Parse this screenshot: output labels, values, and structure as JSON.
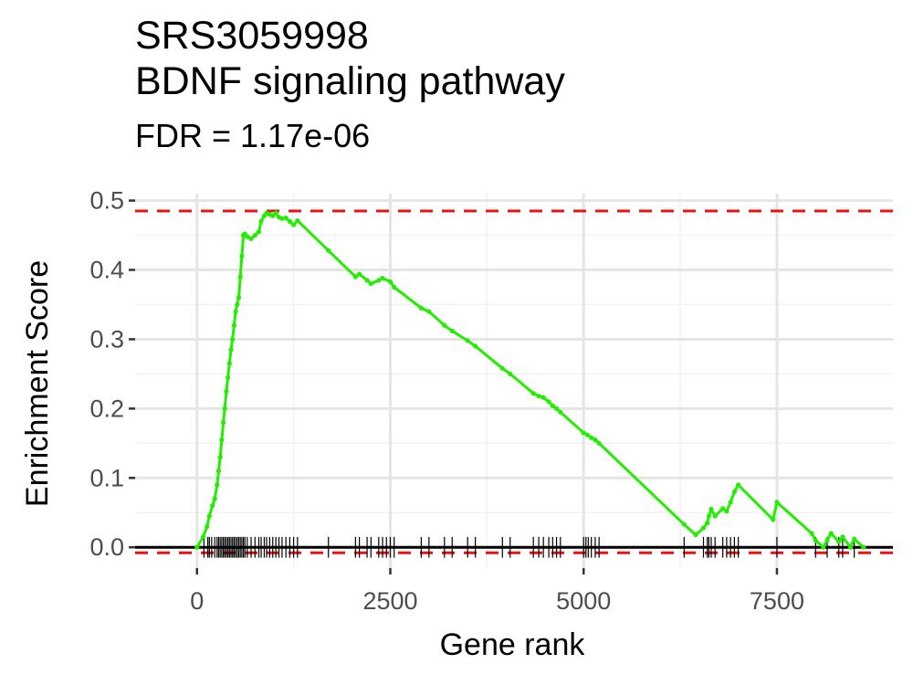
{
  "chart_data": {
    "type": "line",
    "title": "SRS3059998",
    "title_line2": "BDNF signaling pathway",
    "subtitle": "FDR = 1.17e-06",
    "xlabel": "Gene rank",
    "ylabel": "Enrichment Score",
    "xlim": [
      -800,
      9000
    ],
    "ylim": [
      -0.03,
      0.51
    ],
    "x_ticks": [
      0,
      2500,
      5000,
      7500
    ],
    "x_tick_labels": [
      "0",
      "2500",
      "5000",
      "7500"
    ],
    "y_ticks": [
      0.0,
      0.1,
      0.2,
      0.3,
      0.4,
      0.5
    ],
    "y_tick_labels": [
      "0.0",
      "0.1",
      "0.2",
      "0.3",
      "0.4",
      "0.5"
    ],
    "grid": true,
    "background": "#ffffff",
    "series": [
      {
        "type": "line",
        "color": "#22ee00",
        "x": [
          0,
          80,
          130,
          160,
          200,
          230,
          260,
          280,
          300,
          320,
          340,
          360,
          380,
          400,
          420,
          440,
          460,
          480,
          500,
          520,
          540,
          560,
          580,
          600,
          620,
          650,
          700,
          750,
          800,
          830,
          870,
          900,
          940,
          980,
          1020,
          1060,
          1100,
          1150,
          1200,
          1250,
          1300,
          1700,
          2050,
          2100,
          2200,
          2250,
          2350,
          2400,
          2500,
          2550,
          2900,
          3000,
          3200,
          3300,
          3500,
          3600,
          3950,
          4050,
          4350,
          4420,
          4480,
          4550,
          4600,
          4650,
          4700,
          5000,
          5050,
          5100,
          5150,
          5200,
          6300,
          6450,
          6550,
          6600,
          6620,
          6650,
          6700,
          6800,
          6850,
          6900,
          6950,
          7000,
          7450,
          7500,
          7950,
          8000,
          8100,
          8150,
          8200,
          8300,
          8350,
          8450,
          8500,
          8620
        ],
        "y": [
          0.0,
          0.015,
          0.03,
          0.045,
          0.06,
          0.07,
          0.09,
          0.11,
          0.13,
          0.155,
          0.18,
          0.2,
          0.225,
          0.245,
          0.265,
          0.285,
          0.3,
          0.32,
          0.34,
          0.35,
          0.36,
          0.39,
          0.42,
          0.45,
          0.452,
          0.448,
          0.445,
          0.45,
          0.455,
          0.47,
          0.478,
          0.482,
          0.48,
          0.478,
          0.482,
          0.476,
          0.474,
          0.475,
          0.47,
          0.465,
          0.471,
          0.428,
          0.39,
          0.394,
          0.385,
          0.38,
          0.385,
          0.388,
          0.383,
          0.375,
          0.345,
          0.34,
          0.32,
          0.312,
          0.298,
          0.29,
          0.258,
          0.25,
          0.222,
          0.218,
          0.216,
          0.21,
          0.204,
          0.2,
          0.195,
          0.165,
          0.162,
          0.158,
          0.155,
          0.15,
          0.033,
          0.018,
          0.028,
          0.035,
          0.045,
          0.055,
          0.045,
          0.056,
          0.052,
          0.065,
          0.08,
          0.09,
          0.04,
          0.065,
          0.02,
          0.01,
          0.0,
          0.01,
          0.02,
          0.008,
          0.015,
          0.0,
          0.012,
          0.0
        ]
      },
      {
        "type": "hline",
        "y": 0.485,
        "color": "#ee1111",
        "linetype": "dashed"
      },
      {
        "type": "hline",
        "y": -0.008,
        "color": "#ee1111",
        "linetype": "dashed"
      },
      {
        "type": "hline",
        "y": 0.0,
        "color": "#000000",
        "linetype": "solid"
      },
      {
        "type": "rug",
        "color": "#000000",
        "y_range": [
          -0.015,
          0.015
        ],
        "x": [
          90,
          140,
          160,
          190,
          230,
          260,
          280,
          300,
          320,
          340,
          360,
          380,
          400,
          420,
          440,
          460,
          480,
          500,
          520,
          540,
          560,
          580,
          600,
          620,
          650,
          700,
          750,
          800,
          830,
          870,
          900,
          940,
          980,
          1020,
          1060,
          1100,
          1150,
          1200,
          1250,
          1300,
          1700,
          2050,
          2100,
          2200,
          2250,
          2350,
          2400,
          2450,
          2500,
          2550,
          2900,
          3000,
          3200,
          3300,
          3500,
          3600,
          3950,
          4050,
          4350,
          4420,
          4480,
          4550,
          4600,
          4650,
          4700,
          5000,
          5030,
          5060,
          5100,
          5150,
          5200,
          6300,
          6550,
          6600,
          6620,
          6650,
          6700,
          6800,
          6850,
          6900,
          6950,
          7000,
          7500,
          8000,
          8150,
          8300,
          8350,
          8500
        ]
      }
    ]
  }
}
